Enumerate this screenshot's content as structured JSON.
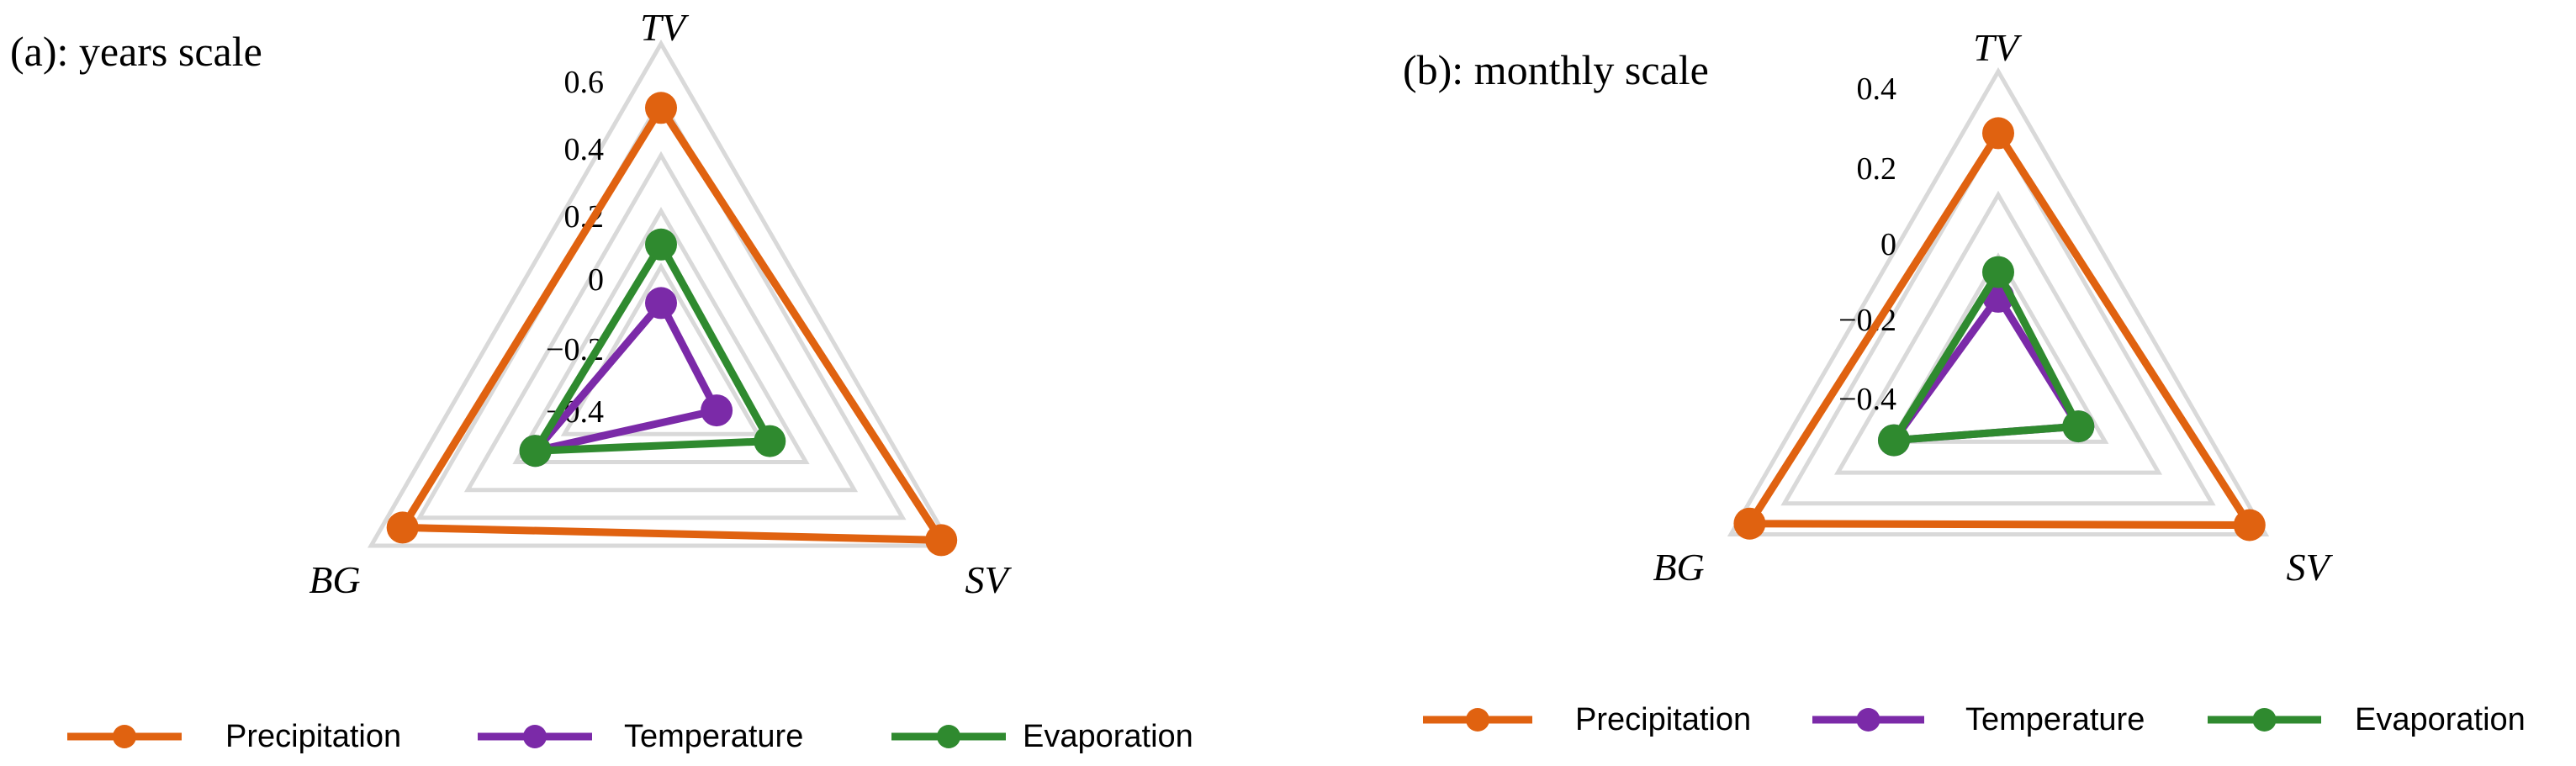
{
  "colors": {
    "Precipitation": "#e06210",
    "Temperature": "#7b2aa8",
    "Evaporation": "#2f8a2f",
    "grid": "#d9d9d9"
  },
  "chart_data": [
    {
      "type": "radar",
      "title": "(a): years scale",
      "axes": [
        "TV",
        "SV",
        "BG"
      ],
      "ticks": [
        "0.6",
        "0.4",
        "0.2",
        "0",
        "−0.2",
        "−0.4"
      ],
      "rlim": [
        -0.6,
        0.6
      ],
      "grid": true,
      "series": [
        {
          "name": "Precipitation",
          "values": [
            0.37,
            0.56,
            0.47
          ]
        },
        {
          "name": "Temperature",
          "values": [
            -0.33,
            -0.37,
            -0.08
          ]
        },
        {
          "name": "Evaporation",
          "values": [
            -0.12,
            -0.15,
            -0.08
          ]
        }
      ]
    },
    {
      "type": "radar",
      "title": "(b): monthly scale",
      "axes": [
        "TV",
        "SV",
        "BG"
      ],
      "ticks": [
        "0.4",
        "0.2",
        "0",
        "−0.2",
        "−0.4"
      ],
      "rlim": [
        -0.6,
        0.4
      ],
      "grid": true,
      "series": [
        {
          "name": "Precipitation",
          "values": [
            0.2,
            0.34,
            0.33
          ]
        },
        {
          "name": "Temperature",
          "values": [
            -0.33,
            -0.3,
            -0.21
          ]
        },
        {
          "name": "Evaporation",
          "values": [
            -0.25,
            -0.3,
            -0.21
          ]
        }
      ]
    }
  ],
  "legend": [
    {
      "label": "Precipitation"
    },
    {
      "label": "Temperature"
    },
    {
      "label": "Evaporation"
    }
  ]
}
